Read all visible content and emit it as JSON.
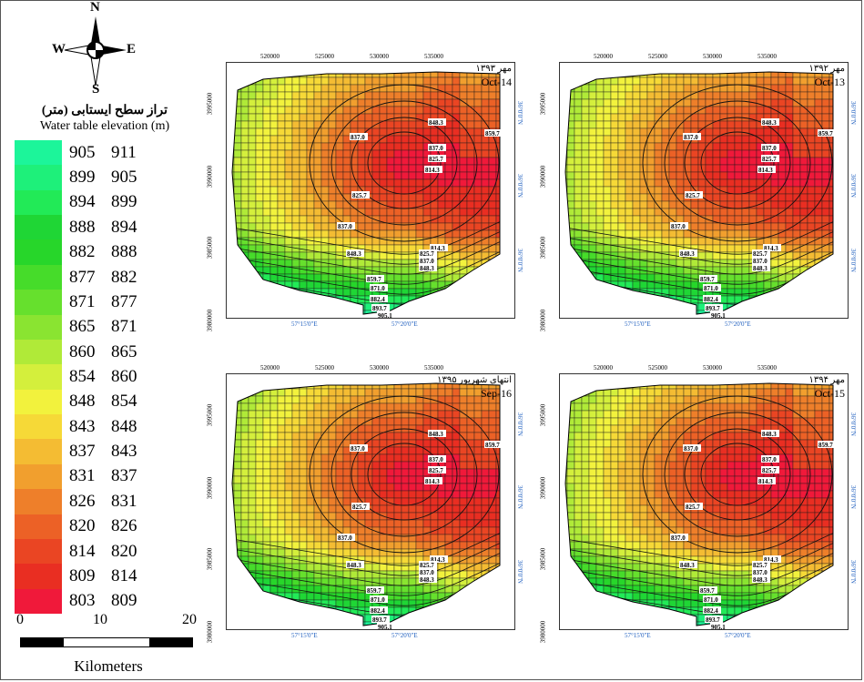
{
  "compass": {
    "n": "N",
    "s": "S",
    "e": "E",
    "w": "W"
  },
  "legend": {
    "title_fa": "تراز سطح ایستابی (متر)",
    "title_en": "Water table elevation (m)",
    "ranges": [
      {
        "from": "905",
        "to": "911",
        "color": "#1cf59a"
      },
      {
        "from": "899",
        "to": "905",
        "color": "#1ef07a"
      },
      {
        "from": "894",
        "to": "899",
        "color": "#22ea57"
      },
      {
        "from": "888",
        "to": "894",
        "color": "#1fd635"
      },
      {
        "from": "882",
        "to": "888",
        "color": "#27d62a"
      },
      {
        "from": "877",
        "to": "882",
        "color": "#46dc2a"
      },
      {
        "from": "871",
        "to": "877",
        "color": "#66e02d"
      },
      {
        "from": "865",
        "to": "871",
        "color": "#8ae431"
      },
      {
        "from": "860",
        "to": "865",
        "color": "#b0ea38"
      },
      {
        "from": "854",
        "to": "860",
        "color": "#d4ef3c"
      },
      {
        "from": "848",
        "to": "854",
        "color": "#f2f23d"
      },
      {
        "from": "843",
        "to": "848",
        "color": "#f6d937"
      },
      {
        "from": "837",
        "to": "843",
        "color": "#f4bc33"
      },
      {
        "from": "831",
        "to": "837",
        "color": "#f19f2e"
      },
      {
        "from": "826",
        "to": "831",
        "color": "#ee7f2a"
      },
      {
        "from": "820",
        "to": "826",
        "color": "#ec6126"
      },
      {
        "from": "814",
        "to": "820",
        "color": "#ea4523"
      },
      {
        "from": "809",
        "to": "814",
        "color": "#e92e22"
      },
      {
        "from": "803",
        "to": "809",
        "color": "#f0193a"
      }
    ]
  },
  "scale": {
    "ticks": [
      "0",
      "10",
      "20"
    ],
    "unit": "Kilometers"
  },
  "axes": {
    "x_top": [
      "520000",
      "525000",
      "530000",
      "535000"
    ],
    "y_left": [
      "3995000",
      "3990000",
      "3985000",
      "3980000"
    ],
    "x_bottom": [
      "57°15'0\"E",
      "57°20'0\"E"
    ],
    "y_right": [
      "36°0'0\"N",
      "36°0'0\"N",
      "36°0'0\"N"
    ]
  },
  "contour_labels": [
    "859.7",
    "848.3",
    "837.0",
    "837.0",
    "825.7",
    "814.3",
    "825.7",
    "837.0",
    "814.3",
    "848.3",
    "825.7",
    "837.0",
    "848.3",
    "859.7",
    "871.0",
    "882.4",
    "893.7",
    "905.1"
  ],
  "panels": [
    {
      "label_fa": "مهر ۱۳۹۳",
      "label_en": "Oct-14"
    },
    {
      "label_fa": "مهر ۱۳۹۲",
      "label_en": "Oct-13"
    },
    {
      "label_fa": "انتهای شهریور ۱۳۹۵",
      "label_en": "Sep-16"
    },
    {
      "label_fa": "مهر ۱۳۹۴",
      "label_en": "Oct-15"
    }
  ]
}
